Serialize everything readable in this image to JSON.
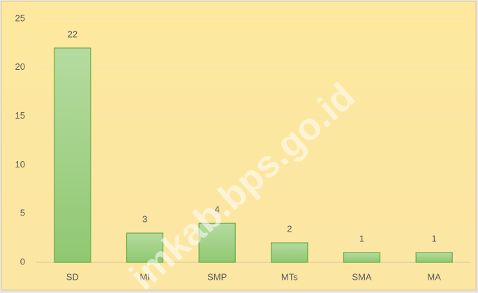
{
  "chart_data": {
    "type": "bar",
    "categories": [
      "SD",
      "MI",
      "SMP",
      "MTs",
      "SMA",
      "MA"
    ],
    "values": [
      22,
      3,
      4,
      2,
      1,
      1
    ],
    "color": "#a9d18e",
    "ylim": [
      0,
      25
    ],
    "yticks": [
      0,
      5,
      10,
      15,
      20,
      25
    ],
    "grid": true,
    "watermark": "imkab.bps.go.id"
  }
}
